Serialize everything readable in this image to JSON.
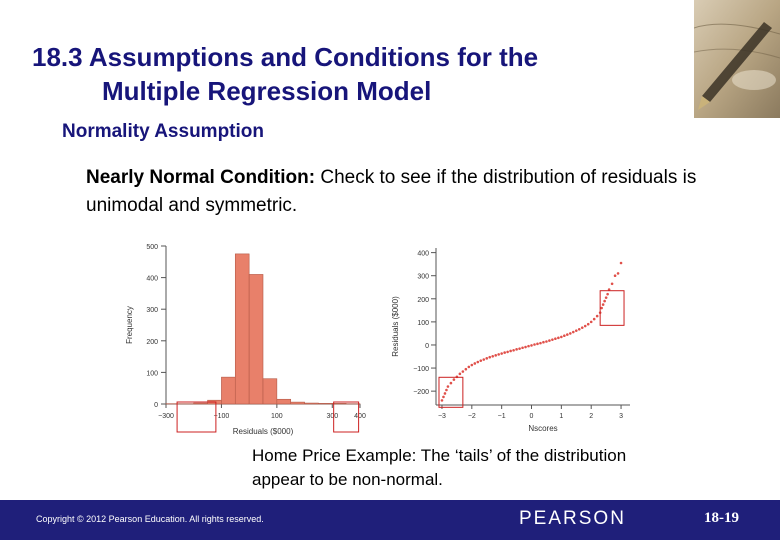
{
  "slide": {
    "title_line1": "18.3 Assumptions and Conditions for the",
    "title_line2": "Multiple Regression Model",
    "subtitle": "Normality Assumption",
    "body_bold": "Nearly Normal Condition:",
    "body_rest": " Check to see if the distribution of residuals is unimodal and symmetric.",
    "caption": "Home Price Example:  The ‘tails’ of the distribution appear to be non-normal.",
    "copyright": "Copyright © 2012  Pearson Education. All rights reserved.",
    "publisher": "PEARSON",
    "page_number": "18-19"
  },
  "colors": {
    "title": "#17157a",
    "footer": "#1f1f7a",
    "bar": "#e8806a",
    "highlight_box": "#cc2020",
    "qq_points": "#e0504a"
  },
  "chart_data": [
    {
      "type": "bar",
      "title": "",
      "xlabel": "Residuals ($000)",
      "ylabel": "Frequency",
      "x_ticks": [
        "−300",
        "−100",
        "100",
        "300",
        "400"
      ],
      "y_ticks": [
        "0",
        "100",
        "200",
        "300",
        "400",
        "500"
      ],
      "ylim": [
        0,
        500
      ],
      "xlim": [
        -300,
        400
      ],
      "bins": [
        {
          "start": -300,
          "end": -250,
          "value": 1
        },
        {
          "start": -250,
          "end": -200,
          "value": 1
        },
        {
          "start": -200,
          "end": -150,
          "value": 3
        },
        {
          "start": -150,
          "end": -100,
          "value": 12
        },
        {
          "start": -100,
          "end": -50,
          "value": 85
        },
        {
          "start": -50,
          "end": 0,
          "value": 475
        },
        {
          "start": 0,
          "end": 50,
          "value": 410
        },
        {
          "start": 50,
          "end": 100,
          "value": 80
        },
        {
          "start": 100,
          "end": 150,
          "value": 15
        },
        {
          "start": 150,
          "end": 200,
          "value": 6
        },
        {
          "start": 200,
          "end": 250,
          "value": 3
        },
        {
          "start": 250,
          "end": 300,
          "value": 2
        },
        {
          "start": 300,
          "end": 350,
          "value": 2
        },
        {
          "start": 350,
          "end": 400,
          "value": 1
        }
      ],
      "highlight_regions": [
        [
          -260,
          -120
        ],
        [
          305,
          395
        ]
      ]
    },
    {
      "type": "scatter",
      "title": "",
      "xlabel": "Nscores",
      "ylabel": "Residuals ($000)",
      "x_ticks": [
        "−3",
        "−2",
        "−1",
        "0",
        "1",
        "2",
        "3"
      ],
      "y_ticks": [
        "−200",
        "−100",
        "0",
        "100",
        "200",
        "300",
        "400"
      ],
      "xlim": [
        -3.2,
        3.3
      ],
      "ylim": [
        -260,
        420
      ],
      "points": [
        [
          -3.0,
          -240
        ],
        [
          -2.95,
          -225
        ],
        [
          -2.9,
          -210
        ],
        [
          -2.85,
          -195
        ],
        [
          -2.8,
          -180
        ],
        [
          -2.7,
          -165
        ],
        [
          -2.6,
          -150
        ],
        [
          -2.5,
          -138
        ],
        [
          -2.4,
          -125
        ],
        [
          -2.3,
          -115
        ],
        [
          -2.2,
          -105
        ],
        [
          -2.1,
          -95
        ],
        [
          -2.0,
          -87
        ],
        [
          -1.9,
          -80
        ],
        [
          -1.8,
          -74
        ],
        [
          -1.7,
          -68
        ],
        [
          -1.6,
          -63
        ],
        [
          -1.5,
          -58
        ],
        [
          -1.4,
          -53
        ],
        [
          -1.3,
          -49
        ],
        [
          -1.2,
          -45
        ],
        [
          -1.1,
          -41
        ],
        [
          -1.0,
          -37
        ],
        [
          -0.9,
          -33
        ],
        [
          -0.8,
          -30
        ],
        [
          -0.7,
          -26
        ],
        [
          -0.6,
          -23
        ],
        [
          -0.5,
          -19
        ],
        [
          -0.4,
          -16
        ],
        [
          -0.3,
          -12
        ],
        [
          -0.2,
          -9
        ],
        [
          -0.1,
          -5
        ],
        [
          0.0,
          -2
        ],
        [
          0.1,
          2
        ],
        [
          0.2,
          5
        ],
        [
          0.3,
          8
        ],
        [
          0.4,
          12
        ],
        [
          0.5,
          15
        ],
        [
          0.6,
          19
        ],
        [
          0.7,
          23
        ],
        [
          0.8,
          27
        ],
        [
          0.9,
          31
        ],
        [
          1.0,
          35
        ],
        [
          1.1,
          40
        ],
        [
          1.2,
          45
        ],
        [
          1.3,
          50
        ],
        [
          1.4,
          56
        ],
        [
          1.5,
          62
        ],
        [
          1.6,
          68
        ],
        [
          1.7,
          75
        ],
        [
          1.8,
          82
        ],
        [
          1.9,
          90
        ],
        [
          2.0,
          100
        ],
        [
          2.1,
          112
        ],
        [
          2.2,
          125
        ],
        [
          2.3,
          140
        ],
        [
          2.35,
          160
        ],
        [
          2.4,
          175
        ],
        [
          2.45,
          190
        ],
        [
          2.5,
          205
        ],
        [
          2.55,
          220
        ],
        [
          2.6,
          240
        ],
        [
          2.7,
          265
        ],
        [
          2.8,
          300
        ],
        [
          2.9,
          310
        ],
        [
          3.0,
          355
        ]
      ],
      "highlight_regions": [
        [
          [
            -3.1,
            -2.3
          ],
          [
            -270,
            -140
          ]
        ],
        [
          [
            2.3,
            3.1
          ],
          [
            85,
            235
          ]
        ]
      ]
    }
  ]
}
